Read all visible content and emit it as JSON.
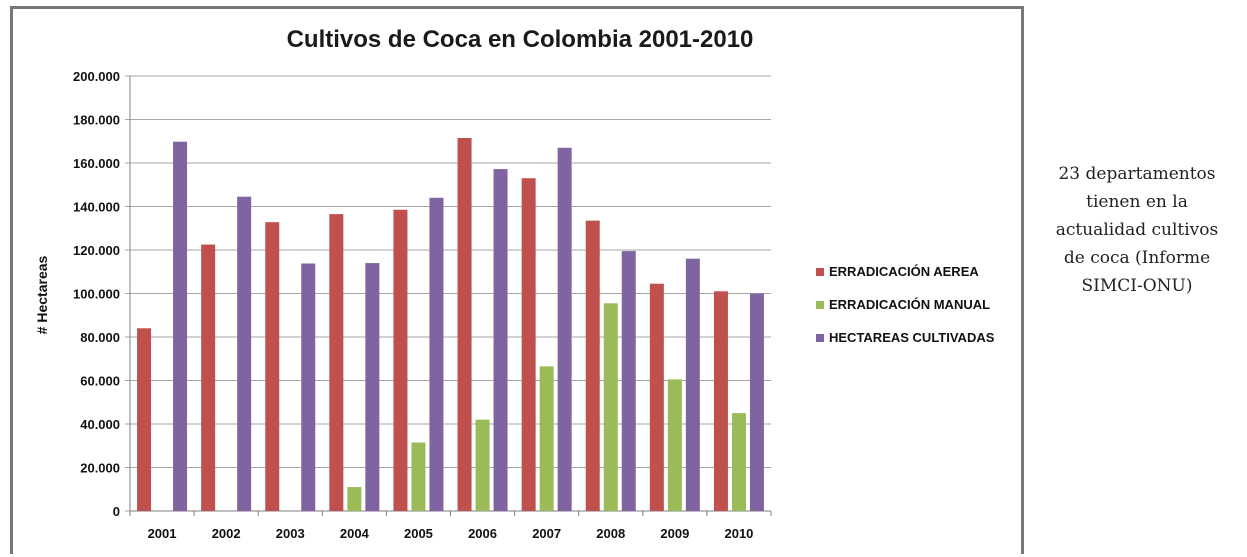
{
  "chart_data": {
    "type": "bar",
    "title": "Cultivos de Coca en Colombia 2001-2010",
    "xlabel": "",
    "ylabel": "# Hectareas",
    "ylim": [
      0,
      200000
    ],
    "y_ticks": [
      "0",
      "20.000",
      "40.000",
      "60.000",
      "80.000",
      "100.000",
      "120.000",
      "140.000",
      "160.000",
      "180.000",
      "200.000"
    ],
    "grid": true,
    "legend_position": "right",
    "categories": [
      "2001",
      "2002",
      "2003",
      "2004",
      "2005",
      "2006",
      "2007",
      "2008",
      "2009",
      "2010"
    ],
    "series": [
      {
        "name": "ERRADICACIÓN AEREA",
        "color": "#c0504d",
        "values": [
          84000,
          122500,
          132800,
          136500,
          138500,
          171500,
          153000,
          133500,
          104500,
          101000
        ]
      },
      {
        "name": "ERRADICACIÓN MANUAL",
        "color": "#9bbb59",
        "values": [
          0,
          0,
          0,
          11000,
          31500,
          42000,
          66500,
          95500,
          60500,
          45000
        ]
      },
      {
        "name": "HECTAREAS CULTIVADAS",
        "color": "#8064a2",
        "values": [
          169800,
          144500,
          113800,
          114000,
          144000,
          157200,
          167000,
          119500,
          116000,
          100000
        ]
      }
    ]
  },
  "side_note": {
    "line1": "23 departamentos",
    "line2": "tienen en la",
    "line3": "actualidad cultivos",
    "line4": "de coca (Informe",
    "line5": "SIMCI-ONU)"
  }
}
